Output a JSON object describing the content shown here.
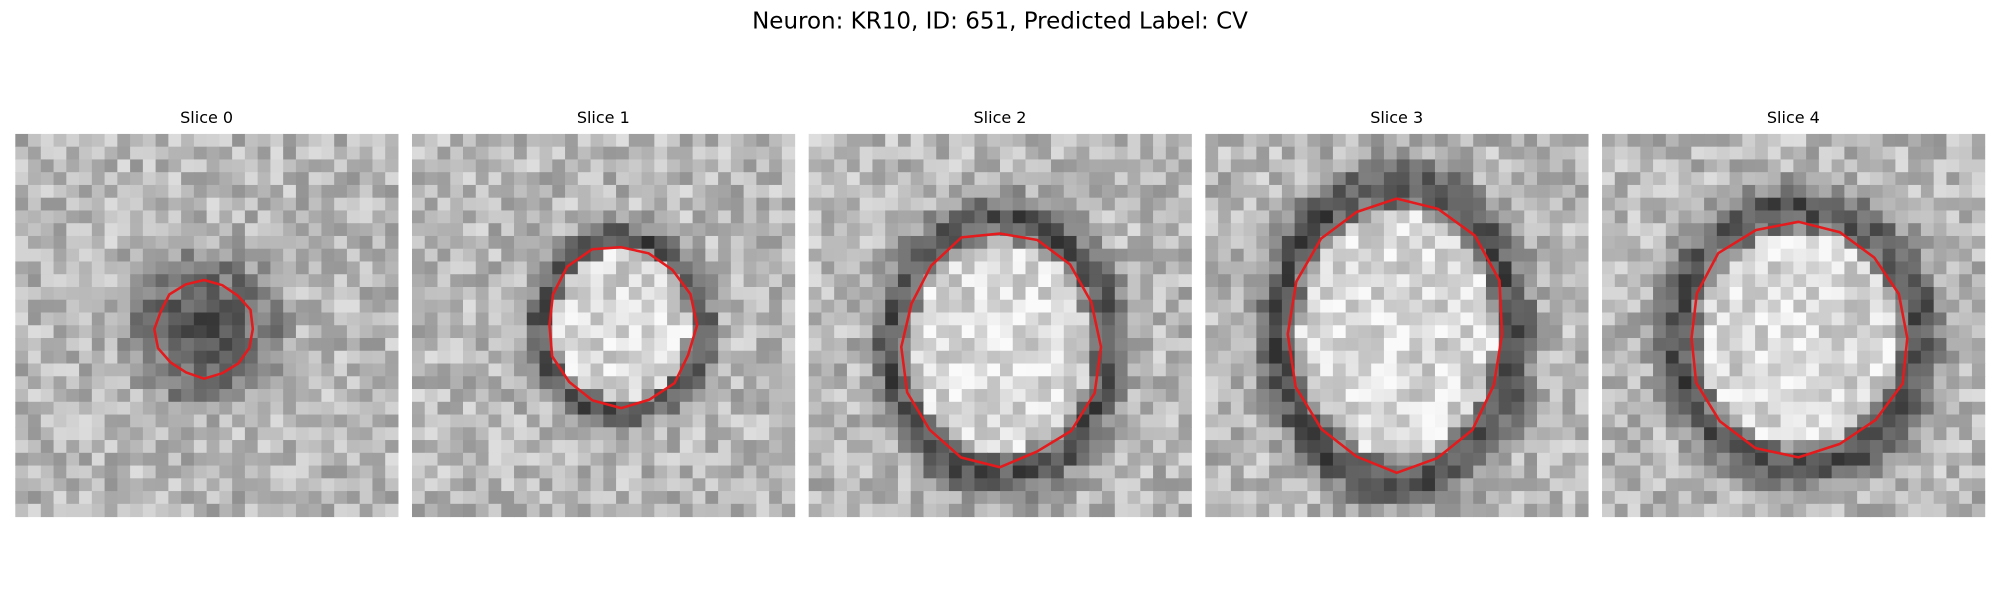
{
  "header": {
    "title": "Neuron: KR10, ID: 651, Predicted Label: CV"
  },
  "panels": [
    {
      "title": "Slice 0"
    },
    {
      "title": "Slice 1"
    },
    {
      "title": "Slice 2"
    },
    {
      "title": "Slice 3"
    },
    {
      "title": "Slice 4"
    }
  ]
}
